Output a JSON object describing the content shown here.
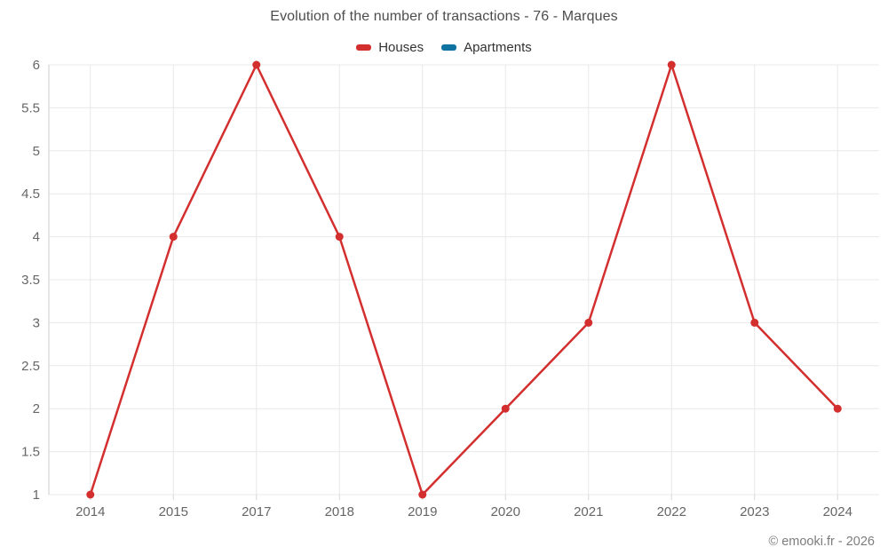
{
  "header": {
    "title": "Evolution of the number of transactions - 76 - Marques"
  },
  "footer": {
    "copyright": "© emooki.fr - 2026"
  },
  "colors": {
    "houses": "#d32f2f",
    "apartments": "#0e73a0",
    "grid_line": "#e8e8e8",
    "axis_line": "#cccccc",
    "tick_line": "#d6d6d6",
    "axis_label": "#666666"
  },
  "chart_data": {
    "type": "line",
    "title": "Evolution of the number of transactions - 76 - Marques",
    "categories": [
      "2014",
      "2015",
      "2017",
      "2018",
      "2019",
      "2020",
      "2021",
      "2022",
      "2023",
      "2024"
    ],
    "series": [
      {
        "name": "Houses",
        "color": "#d32f2f",
        "values": [
          1,
          4,
          6,
          4,
          1,
          2,
          3,
          6,
          3,
          2
        ]
      },
      {
        "name": "Apartments",
        "color": "#0e73a0",
        "values": []
      }
    ],
    "xlabel": "",
    "ylabel": "",
    "ylim": [
      1,
      6
    ],
    "yticks": [
      1,
      1.5,
      2,
      2.5,
      3,
      3.5,
      4,
      4.5,
      5,
      5.5,
      6
    ],
    "grid": true,
    "legend_position": "top"
  }
}
